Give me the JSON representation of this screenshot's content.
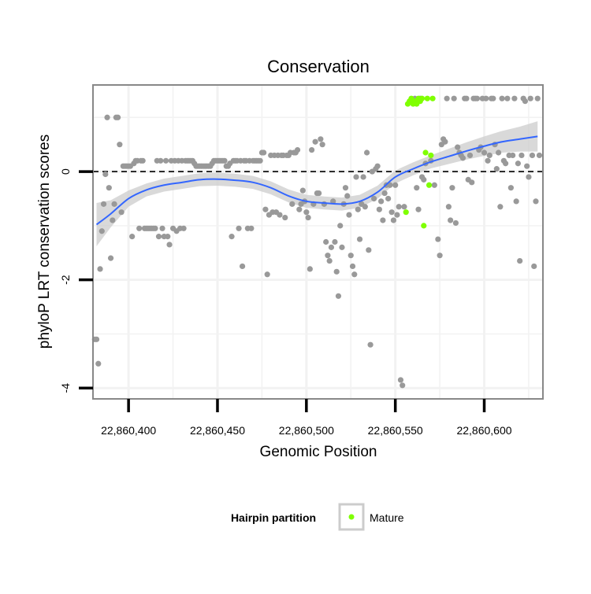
{
  "chart_data": {
    "type": "scatter",
    "title": "Conservation",
    "xlabel": "Genomic Position",
    "ylabel": "phyloP LRT conservation scores",
    "xlim": [
      22860380,
      22860633
    ],
    "ylim": [
      -4.2,
      1.6
    ],
    "x_ticks": [
      22860400,
      22860450,
      22860500,
      22860550,
      22860600
    ],
    "x_tick_labels": [
      "22,860,400",
      "22,860,450",
      "22,860,500",
      "22,860,550",
      "22,860,600"
    ],
    "y_ticks": [
      0,
      -2,
      -4
    ],
    "y_tick_labels": [
      "0",
      "-2",
      "-4"
    ],
    "reference_line": {
      "y": 0,
      "style": "dashed",
      "color": "#000000"
    },
    "grid": true,
    "legend": {
      "title": "Hairpin partition",
      "position": "bottom",
      "entries": [
        {
          "label": "Mature",
          "color": "#7FFF00"
        }
      ]
    },
    "colors": {
      "points": "#999999",
      "mature": "#7FFF00",
      "smooth_line": "#3366FF",
      "ci_band": "#CCCCCC",
      "panel_border": "#888888",
      "grid": "#F2F2F2"
    },
    "series": [
      {
        "points": [
          [
            22860381,
            -3.1
          ],
          [
            22860382,
            -3.1
          ],
          [
            22860383,
            -3.55
          ],
          [
            22860384,
            -1.8
          ],
          [
            22860385,
            -1.1
          ],
          [
            22860386,
            -0.6
          ],
          [
            22860387,
            -0.05
          ],
          [
            22860388,
            1.0
          ],
          [
            22860389,
            -0.3
          ],
          [
            22860390,
            -1.6
          ],
          [
            22860391,
            -0.9
          ],
          [
            22860392,
            -0.6
          ],
          [
            22860393,
            1.0
          ],
          [
            22860394,
            1.0
          ],
          [
            22860395,
            0.5
          ],
          [
            22860396,
            -0.75
          ],
          [
            22860397,
            0.1
          ],
          [
            22860398,
            0.1
          ],
          [
            22860399,
            0.1
          ],
          [
            22860400,
            0.1
          ],
          [
            22860401,
            0.1
          ],
          [
            22860402,
            -1.2
          ],
          [
            22860403,
            0.15
          ],
          [
            22860404,
            0.2
          ],
          [
            22860405,
            0.2
          ],
          [
            22860406,
            -1.05
          ],
          [
            22860407,
            0.2
          ],
          [
            22860408,
            0.2
          ],
          [
            22860409,
            -1.05
          ],
          [
            22860410,
            -1.05
          ],
          [
            22860411,
            -1.05
          ],
          [
            22860412,
            -1.05
          ],
          [
            22860413,
            -1.05
          ],
          [
            22860414,
            -1.05
          ],
          [
            22860415,
            -1.05
          ],
          [
            22860416,
            0.2
          ],
          [
            22860417,
            -1.2
          ],
          [
            22860418,
            0.2
          ],
          [
            22860419,
            -1.05
          ],
          [
            22860420,
            -1.2
          ],
          [
            22860421,
            0.2
          ],
          [
            22860422,
            -1.2
          ],
          [
            22860423,
            -1.35
          ],
          [
            22860424,
            0.2
          ],
          [
            22860425,
            -1.05
          ],
          [
            22860426,
            0.2
          ],
          [
            22860427,
            -1.1
          ],
          [
            22860428,
            0.2
          ],
          [
            22860429,
            -1.05
          ],
          [
            22860430,
            0.2
          ],
          [
            22860431,
            -1.05
          ],
          [
            22860432,
            0.2
          ],
          [
            22860433,
            0.2
          ],
          [
            22860434,
            0.2
          ],
          [
            22860435,
            0.2
          ],
          [
            22860436,
            0.2
          ],
          [
            22860437,
            0.15
          ],
          [
            22860438,
            0.1
          ],
          [
            22860439,
            0.1
          ],
          [
            22860440,
            0.1
          ],
          [
            22860441,
            0.1
          ],
          [
            22860442,
            0.1
          ],
          [
            22860443,
            0.1
          ],
          [
            22860444,
            0.1
          ],
          [
            22860445,
            0.1
          ],
          [
            22860446,
            0.1
          ],
          [
            22860447,
            0.15
          ],
          [
            22860448,
            0.2
          ],
          [
            22860449,
            0.2
          ],
          [
            22860450,
            0.2
          ],
          [
            22860451,
            0.2
          ],
          [
            22860452,
            0.2
          ],
          [
            22860453,
            0.2
          ],
          [
            22860454,
            0.2
          ],
          [
            22860455,
            0.1
          ],
          [
            22860456,
            0.1
          ],
          [
            22860457,
            0.15
          ],
          [
            22860458,
            -1.2
          ],
          [
            22860459,
            0.2
          ],
          [
            22860460,
            0.2
          ],
          [
            22860461,
            0.2
          ],
          [
            22860462,
            -1.05
          ],
          [
            22860463,
            0.2
          ],
          [
            22860464,
            -1.75
          ],
          [
            22860465,
            0.2
          ],
          [
            22860466,
            0.2
          ],
          [
            22860467,
            -1.05
          ],
          [
            22860468,
            0.2
          ],
          [
            22860469,
            -1.05
          ],
          [
            22860470,
            0.2
          ],
          [
            22860471,
            0.2
          ],
          [
            22860472,
            0.2
          ],
          [
            22860473,
            0.2
          ],
          [
            22860474,
            0.2
          ],
          [
            22860475,
            0.35
          ],
          [
            22860476,
            0.35
          ],
          [
            22860477,
            -0.7
          ],
          [
            22860478,
            -1.9
          ],
          [
            22860479,
            -0.8
          ],
          [
            22860480,
            0.3
          ],
          [
            22860481,
            -0.75
          ],
          [
            22860482,
            0.3
          ],
          [
            22860483,
            -0.75
          ],
          [
            22860484,
            0.3
          ],
          [
            22860485,
            -0.8
          ],
          [
            22860486,
            0.3
          ],
          [
            22860487,
            0.3
          ],
          [
            22860488,
            -0.85
          ],
          [
            22860489,
            0.3
          ],
          [
            22860490,
            0.3
          ],
          [
            22860491,
            0.35
          ],
          [
            22860492,
            -0.6
          ],
          [
            22860493,
            0.35
          ],
          [
            22860494,
            0.35
          ],
          [
            22860495,
            0.4
          ],
          [
            22860496,
            -0.7
          ],
          [
            22860497,
            -0.6
          ],
          [
            22860498,
            -0.35
          ],
          [
            22860499,
            -0.55
          ],
          [
            22860500,
            -0.75
          ],
          [
            22860501,
            -0.85
          ],
          [
            22860502,
            -1.8
          ],
          [
            22860503,
            0.4
          ],
          [
            22860504,
            -0.6
          ],
          [
            22860505,
            0.55
          ],
          [
            22860506,
            -0.4
          ],
          [
            22860507,
            -0.4
          ],
          [
            22860508,
            0.6
          ],
          [
            22860509,
            0.5
          ],
          [
            22860510,
            -0.6
          ],
          [
            22860511,
            -1.3
          ],
          [
            22860512,
            -1.55
          ],
          [
            22860513,
            -1.65
          ],
          [
            22860514,
            -1.4
          ],
          [
            22860515,
            -0.55
          ],
          [
            22860516,
            -1.3
          ],
          [
            22860517,
            -1.85
          ],
          [
            22860518,
            -2.3
          ],
          [
            22860519,
            -1.0
          ],
          [
            22860520,
            -1.4
          ],
          [
            22860521,
            -0.6
          ],
          [
            22860522,
            -0.3
          ],
          [
            22860523,
            -0.45
          ],
          [
            22860524,
            -0.8
          ],
          [
            22860525,
            -1.55
          ],
          [
            22860526,
            -1.75
          ],
          [
            22860527,
            -1.9
          ],
          [
            22860528,
            -0.1
          ],
          [
            22860529,
            -0.7
          ],
          [
            22860530,
            -1.25
          ],
          [
            22860531,
            -0.6
          ],
          [
            22860532,
            -0.1
          ],
          [
            22860533,
            -0.65
          ],
          [
            22860534,
            0.35
          ],
          [
            22860535,
            -1.45
          ],
          [
            22860536,
            -3.2
          ],
          [
            22860537,
            0.0
          ],
          [
            22860538,
            -0.5
          ],
          [
            22860539,
            0.05
          ],
          [
            22860540,
            0.1
          ],
          [
            22860541,
            -0.7
          ],
          [
            22860542,
            -0.55
          ],
          [
            22860543,
            -0.9
          ],
          [
            22860544,
            -0.4
          ],
          [
            22860545,
            -0.25
          ],
          [
            22860546,
            -0.5
          ],
          [
            22860547,
            -0.25
          ],
          [
            22860548,
            -0.75
          ],
          [
            22860549,
            -0.9
          ],
          [
            22860550,
            -0.25
          ],
          [
            22860551,
            -0.8
          ],
          [
            22860552,
            -0.65
          ],
          [
            22860553,
            -3.85
          ],
          [
            22860554,
            -3.95
          ],
          [
            22860555,
            -0.65
          ],
          [
            22860561,
            1.35
          ],
          [
            22860562,
            -0.3
          ],
          [
            22860563,
            -0.7
          ],
          [
            22860564,
            1.35
          ],
          [
            22860565,
            -0.1
          ],
          [
            22860566,
            -0.15
          ],
          [
            22860567,
            0.15
          ],
          [
            22860570,
            0.2
          ],
          [
            22860572,
            -0.25
          ],
          [
            22860574,
            -1.25
          ],
          [
            22860575,
            -1.55
          ],
          [
            22860576,
            0.5
          ],
          [
            22860577,
            0.6
          ],
          [
            22860578,
            0.55
          ],
          [
            22860579,
            1.35
          ],
          [
            22860580,
            -0.65
          ],
          [
            22860581,
            -0.9
          ],
          [
            22860582,
            -0.3
          ],
          [
            22860583,
            1.35
          ],
          [
            22860584,
            -0.95
          ],
          [
            22860585,
            0.45
          ],
          [
            22860586,
            0.35
          ],
          [
            22860587,
            0.3
          ],
          [
            22860588,
            0.25
          ],
          [
            22860589,
            1.35
          ],
          [
            22860590,
            1.35
          ],
          [
            22860591,
            -0.15
          ],
          [
            22860592,
            0.3
          ],
          [
            22860593,
            -0.2
          ],
          [
            22860594,
            1.35
          ],
          [
            22860595,
            1.35
          ],
          [
            22860596,
            1.35
          ],
          [
            22860597,
            0.4
          ],
          [
            22860598,
            0.45
          ],
          [
            22860599,
            1.35
          ],
          [
            22860600,
            0.35
          ],
          [
            22860601,
            1.35
          ],
          [
            22860602,
            0.2
          ],
          [
            22860603,
            0.3
          ],
          [
            22860604,
            1.35
          ],
          [
            22860605,
            1.35
          ],
          [
            22860606,
            0.5
          ],
          [
            22860607,
            0.05
          ],
          [
            22860608,
            0.35
          ],
          [
            22860609,
            -0.65
          ],
          [
            22860610,
            1.35
          ],
          [
            22860611,
            0.2
          ],
          [
            22860612,
            0.15
          ],
          [
            22860613,
            1.35
          ],
          [
            22860614,
            0.3
          ],
          [
            22860615,
            -0.3
          ],
          [
            22860616,
            0.3
          ],
          [
            22860617,
            1.35
          ],
          [
            22860618,
            -0.55
          ],
          [
            22860619,
            0.15
          ],
          [
            22860620,
            -1.65
          ],
          [
            22860621,
            0.3
          ],
          [
            22860622,
            1.35
          ],
          [
            22860623,
            1.3
          ],
          [
            22860624,
            0.1
          ],
          [
            22860625,
            -0.1
          ],
          [
            22860626,
            1.35
          ],
          [
            22860627,
            0.3
          ],
          [
            22860628,
            -1.75
          ],
          [
            22860629,
            -0.55
          ],
          [
            22860630,
            1.35
          ],
          [
            22860631,
            0.3
          ]
        ]
      },
      {
        "name": "Mature",
        "points": [
          [
            22860556,
            -0.75
          ],
          [
            22860557,
            1.25
          ],
          [
            22860558,
            1.3
          ],
          [
            22860559,
            1.35
          ],
          [
            22860560,
            1.25
          ],
          [
            22860561,
            1.3
          ],
          [
            22860562,
            1.25
          ],
          [
            22860563,
            1.35
          ],
          [
            22860564,
            1.3
          ],
          [
            22860565,
            1.35
          ],
          [
            22860566,
            -1.0
          ],
          [
            22860567,
            0.35
          ],
          [
            22860568,
            1.35
          ],
          [
            22860569,
            -0.25
          ],
          [
            22860570,
            0.3
          ],
          [
            22860571,
            1.35
          ]
        ]
      }
    ],
    "smooth": {
      "method": "loess",
      "x": [
        22860382,
        22860390,
        22860400,
        22860410,
        22860420,
        22860430,
        22860440,
        22860450,
        22860460,
        22860470,
        22860480,
        22860490,
        22860500,
        22860510,
        22860520,
        22860530,
        22860540,
        22860550,
        22860560,
        22860570,
        22860580,
        22860590,
        22860600,
        22860610,
        22860620,
        22860630
      ],
      "y": [
        -0.98,
        -0.78,
        -0.5,
        -0.34,
        -0.25,
        -0.2,
        -0.15,
        -0.14,
        -0.16,
        -0.2,
        -0.3,
        -0.45,
        -0.55,
        -0.58,
        -0.6,
        -0.55,
        -0.38,
        -0.1,
        0.05,
        0.18,
        0.28,
        0.38,
        0.47,
        0.55,
        0.6,
        0.65
      ],
      "ci_halfwidth": [
        0.4,
        0.25,
        0.15,
        0.12,
        0.12,
        0.12,
        0.12,
        0.12,
        0.12,
        0.12,
        0.12,
        0.12,
        0.12,
        0.12,
        0.12,
        0.12,
        0.12,
        0.12,
        0.12,
        0.12,
        0.14,
        0.16,
        0.18,
        0.2,
        0.23,
        0.28
      ]
    }
  }
}
